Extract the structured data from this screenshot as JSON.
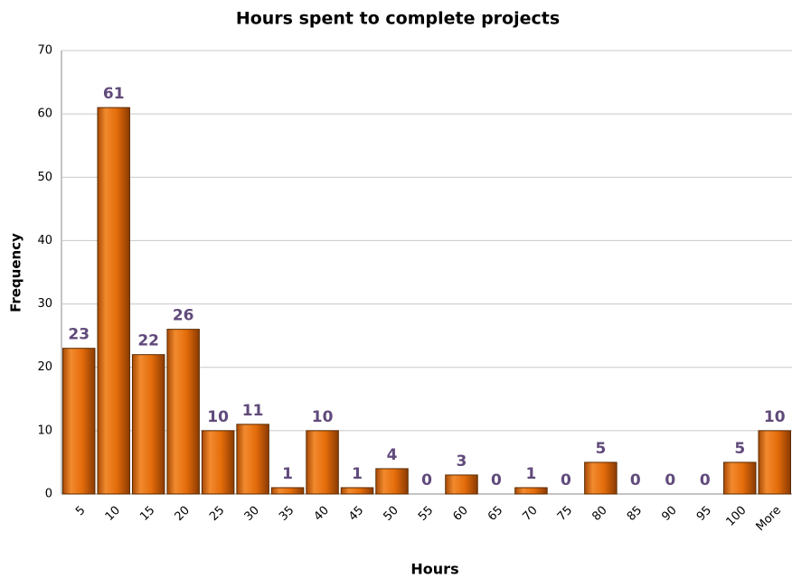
{
  "chart_data": {
    "type": "bar",
    "title": "Hours spent to complete projects",
    "x_label": "Hours",
    "y_label": "Frequency",
    "categories": [
      "5",
      "10",
      "15",
      "20",
      "25",
      "30",
      "35",
      "40",
      "45",
      "50",
      "55",
      "60",
      "65",
      "70",
      "75",
      "80",
      "85",
      "90",
      "95",
      "100",
      "More"
    ],
    "values": [
      23,
      61,
      22,
      26,
      10,
      11,
      1,
      10,
      1,
      4,
      0,
      3,
      0,
      1,
      0,
      5,
      0,
      0,
      0,
      5,
      10
    ],
    "color": "#e46c0a",
    "ylim": [
      0,
      70
    ],
    "yticks": [
      0,
      10,
      20,
      30,
      40,
      50,
      60,
      70
    ],
    "grid": true
  }
}
